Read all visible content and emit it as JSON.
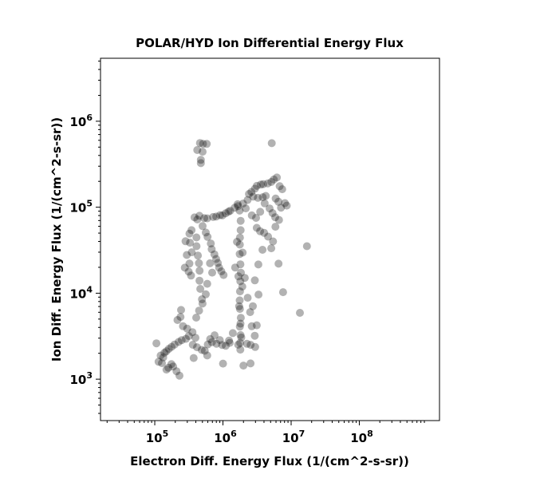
{
  "chart_data": {
    "type": "scatter",
    "title": "POLAR/HYD  Ion Differential Energy Flux",
    "xlabel": "Electron Diff. Energy Flux (1/(cm^2-s-sr))",
    "ylabel": "Ion Diff. Energy Flux (1/(cm^2-s-sr))",
    "x_scale": "log",
    "y_scale": "log",
    "xlim": [
      16000,
      1500000000
    ],
    "ylim": [
      330,
      5400000
    ],
    "x_ticks": [
      {
        "base": "10",
        "exp": "5",
        "value": 100000
      },
      {
        "base": "10",
        "exp": "6",
        "value": 1000000
      },
      {
        "base": "10",
        "exp": "7",
        "value": 10000000
      },
      {
        "base": "10",
        "exp": "8",
        "value": 100000000
      }
    ],
    "y_ticks": [
      {
        "base": "10",
        "exp": "3",
        "value": 1000
      },
      {
        "base": "10",
        "exp": "4",
        "value": 10000
      },
      {
        "base": "10",
        "exp": "5",
        "value": 100000
      },
      {
        "base": "10",
        "exp": "6",
        "value": 1000000
      }
    ],
    "grid": false,
    "marker_color": "#000000",
    "marker_alpha": 0.3,
    "points": [
      [
        460000,
        560000
      ],
      [
        520000,
        540000
      ],
      [
        580000,
        545000
      ],
      [
        430000,
        470000
      ],
      [
        500000,
        440000
      ],
      [
        480000,
        360000
      ],
      [
        470000,
        320000
      ],
      [
        5200000,
        550000
      ],
      [
        380000,
        75000
      ],
      [
        420000,
        72000
      ],
      [
        460000,
        78000
      ],
      [
        520000,
        76000
      ],
      [
        600000,
        74000
      ],
      [
        700000,
        76000
      ],
      [
        800000,
        78000
      ],
      [
        900000,
        80000
      ],
      [
        1000000,
        82000
      ],
      [
        1100000,
        84000
      ],
      [
        1200000,
        88000
      ],
      [
        1300000,
        92000
      ],
      [
        1500000,
        98000
      ],
      [
        1700000,
        105000
      ],
      [
        2000000,
        112000
      ],
      [
        2300000,
        120000
      ],
      [
        2600000,
        150000
      ],
      [
        2900000,
        165000
      ],
      [
        3200000,
        175000
      ],
      [
        3600000,
        180000
      ],
      [
        4000000,
        185000
      ],
      [
        4500000,
        190000
      ],
      [
        5000000,
        195000
      ],
      [
        5600000,
        210000
      ],
      [
        6200000,
        225000
      ],
      [
        6800000,
        175000
      ],
      [
        7500000,
        160000
      ],
      [
        8000000,
        110000
      ],
      [
        7200000,
        100000
      ],
      [
        6400000,
        118000
      ],
      [
        5800000,
        128000
      ],
      [
        8500000,
        105000
      ],
      [
        2400000,
        140000
      ],
      [
        2800000,
        132000
      ],
      [
        3300000,
        128000
      ],
      [
        3800000,
        132000
      ],
      [
        4300000,
        138000
      ],
      [
        17500000,
        35000
      ],
      [
        6500000,
        22000
      ],
      [
        7800000,
        10500
      ],
      [
        13500000,
        6000
      ],
      [
        5400000,
        40000
      ],
      [
        6000000,
        60000
      ],
      [
        5000000,
        33000
      ],
      [
        1800000,
        90000
      ],
      [
        1800000,
        70000
      ],
      [
        1800000,
        55000
      ],
      [
        1800000,
        45000
      ],
      [
        1800000,
        36000
      ],
      [
        1800000,
        28000
      ],
      [
        1800000,
        22000
      ],
      [
        1800000,
        17000
      ],
      [
        1800000,
        13500
      ],
      [
        1800000,
        10500
      ],
      [
        1800000,
        8200
      ],
      [
        1800000,
        6500
      ],
      [
        1800000,
        5100
      ],
      [
        1800000,
        4000
      ],
      [
        1800000,
        3200
      ],
      [
        1800000,
        2600
      ],
      [
        1800000,
        2200
      ],
      [
        1650000,
        40000
      ],
      [
        1950000,
        30000
      ],
      [
        1700000,
        16000
      ],
      [
        1900000,
        12000
      ],
      [
        1750000,
        7000
      ],
      [
        1850000,
        4500
      ],
      [
        1900000,
        3000
      ],
      [
        1700000,
        2500
      ],
      [
        1550000,
        20000
      ],
      [
        2100000,
        15000
      ],
      [
        2300000,
        9000
      ],
      [
        2500000,
        6000
      ],
      [
        2700000,
        4200
      ],
      [
        2900000,
        3200
      ],
      [
        2200000,
        2600
      ],
      [
        1400000,
        3500
      ],
      [
        1200000,
        2800
      ],
      [
        2000000,
        1450
      ],
      [
        2500000,
        1550
      ],
      [
        1000000,
        1550
      ],
      [
        320000,
        50000
      ],
      [
        330000,
        38000
      ],
      [
        340000,
        30000
      ],
      [
        320000,
        22000
      ],
      [
        310000,
        18000
      ],
      [
        340000,
        16000
      ],
      [
        400000,
        45000
      ],
      [
        420000,
        35000
      ],
      [
        430000,
        28000
      ],
      [
        440000,
        22000
      ],
      [
        450000,
        18000
      ],
      [
        460000,
        14000
      ],
      [
        470000,
        11000
      ],
      [
        480000,
        8500
      ],
      [
        290000,
        40000
      ],
      [
        300000,
        28000
      ],
      [
        280000,
        20000
      ],
      [
        350000,
        55000
      ],
      [
        500000,
        60000
      ],
      [
        550000,
        50000
      ],
      [
        600000,
        45000
      ],
      [
        650000,
        38000
      ],
      [
        700000,
        32000
      ],
      [
        750000,
        28000
      ],
      [
        800000,
        25000
      ],
      [
        850000,
        22000
      ],
      [
        900000,
        20000
      ],
      [
        950000,
        18000
      ],
      [
        1000000,
        16000
      ],
      [
        650000,
        22000
      ],
      [
        700000,
        17000
      ],
      [
        600000,
        13000
      ],
      [
        550000,
        9500
      ],
      [
        500000,
        7500
      ],
      [
        450000,
        6200
      ],
      [
        400000,
        5200
      ],
      [
        320000,
        3200
      ],
      [
        280000,
        3000
      ],
      [
        250000,
        2900
      ],
      [
        220000,
        2700
      ],
      [
        200000,
        2500
      ],
      [
        180000,
        2400
      ],
      [
        160000,
        2300
      ],
      [
        150000,
        2100
      ],
      [
        140000,
        2000
      ],
      [
        130000,
        1800
      ],
      [
        120000,
        1900
      ],
      [
        115000,
        1600
      ],
      [
        130000,
        1550
      ],
      [
        145000,
        1300
      ],
      [
        160000,
        1350
      ],
      [
        175000,
        1500
      ],
      [
        190000,
        1400
      ],
      [
        205000,
        1250
      ],
      [
        230000,
        1100
      ],
      [
        105000,
        2600
      ],
      [
        220000,
        4800
      ],
      [
        240000,
        5400
      ],
      [
        240000,
        6500
      ],
      [
        260000,
        4200
      ],
      [
        300000,
        3800
      ],
      [
        350000,
        3500
      ],
      [
        400000,
        3000
      ],
      [
        370000,
        2500
      ],
      [
        420000,
        2400
      ],
      [
        480000,
        2200
      ],
      [
        540000,
        2100
      ],
      [
        600000,
        2500
      ],
      [
        650000,
        2900
      ],
      [
        700000,
        2700
      ],
      [
        750000,
        3200
      ],
      [
        800000,
        2600
      ],
      [
        900000,
        2800
      ],
      [
        1000000,
        2500
      ],
      [
        1100000,
        2400
      ],
      [
        1250000,
        2600
      ],
      [
        380000,
        1750
      ],
      [
        590000,
        1900
      ],
      [
        1600000,
        110000
      ],
      [
        2200000,
        95000
      ],
      [
        2600000,
        82000
      ],
      [
        3000000,
        76000
      ],
      [
        3500000,
        90000
      ],
      [
        4200000,
        110000
      ],
      [
        4800000,
        95000
      ],
      [
        5300000,
        85000
      ],
      [
        5900000,
        78000
      ],
      [
        6600000,
        70000
      ],
      [
        3100000,
        58000
      ],
      [
        3600000,
        52000
      ],
      [
        4100000,
        50000
      ],
      [
        4700000,
        45000
      ],
      [
        3800000,
        32000
      ],
      [
        3300000,
        22000
      ],
      [
        3000000,
        14000
      ],
      [
        3400000,
        9500
      ],
      [
        2800000,
        7000
      ],
      [
        3200000,
        4200
      ],
      [
        2600000,
        2500
      ],
      [
        3000000,
        2400
      ]
    ]
  }
}
